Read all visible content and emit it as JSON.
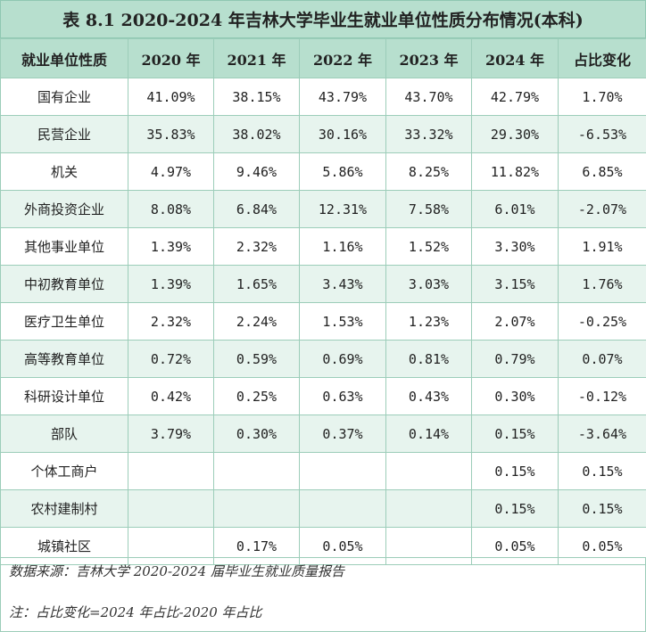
{
  "title": "表 8.1 2020-2024 年吉林大学毕业生就业单位性质分布情况(本科)",
  "columns": [
    "就业单位性质",
    "2020 年",
    "2021 年",
    "2022 年",
    "2023 年",
    "2024 年",
    "占比变化"
  ],
  "rows": [
    {
      "name": "国有企业",
      "v": [
        "41.09%",
        "38.15%",
        "43.79%",
        "43.70%",
        "42.79%",
        "1.70%"
      ]
    },
    {
      "name": "民营企业",
      "v": [
        "35.83%",
        "38.02%",
        "30.16%",
        "33.32%",
        "29.30%",
        "-6.53%"
      ]
    },
    {
      "name": "机关",
      "v": [
        "4.97%",
        "9.46%",
        "5.86%",
        "8.25%",
        "11.82%",
        "6.85%"
      ]
    },
    {
      "name": "外商投资企业",
      "v": [
        "8.08%",
        "6.84%",
        "12.31%",
        "7.58%",
        "6.01%",
        "-2.07%"
      ]
    },
    {
      "name": "其他事业单位",
      "v": [
        "1.39%",
        "2.32%",
        "1.16%",
        "1.52%",
        "3.30%",
        "1.91%"
      ]
    },
    {
      "name": "中初教育单位",
      "v": [
        "1.39%",
        "1.65%",
        "3.43%",
        "3.03%",
        "3.15%",
        "1.76%"
      ]
    },
    {
      "name": "医疗卫生单位",
      "v": [
        "2.32%",
        "2.24%",
        "1.53%",
        "1.23%",
        "2.07%",
        "-0.25%"
      ]
    },
    {
      "name": "高等教育单位",
      "v": [
        "0.72%",
        "0.59%",
        "0.69%",
        "0.81%",
        "0.79%",
        "0.07%"
      ]
    },
    {
      "name": "科研设计单位",
      "v": [
        "0.42%",
        "0.25%",
        "0.63%",
        "0.43%",
        "0.30%",
        "-0.12%"
      ]
    },
    {
      "name": "部队",
      "v": [
        "3.79%",
        "0.30%",
        "0.37%",
        "0.14%",
        "0.15%",
        "-3.64%"
      ]
    },
    {
      "name": "个体工商户",
      "v": [
        "",
        "",
        "",
        "",
        "0.15%",
        "0.15%"
      ]
    },
    {
      "name": "农村建制村",
      "v": [
        "",
        "",
        "",
        "",
        "0.15%",
        "0.15%"
      ]
    },
    {
      "name": "城镇社区",
      "v": [
        "",
        "0.17%",
        "0.05%",
        "",
        "0.05%",
        "0.05%"
      ]
    }
  ],
  "source_note": "数据来源：吉林大学 2020-2024 届毕业生就业质量报告",
  "change_note": "注：占比变化=2024 年占比-2020 年占比"
}
